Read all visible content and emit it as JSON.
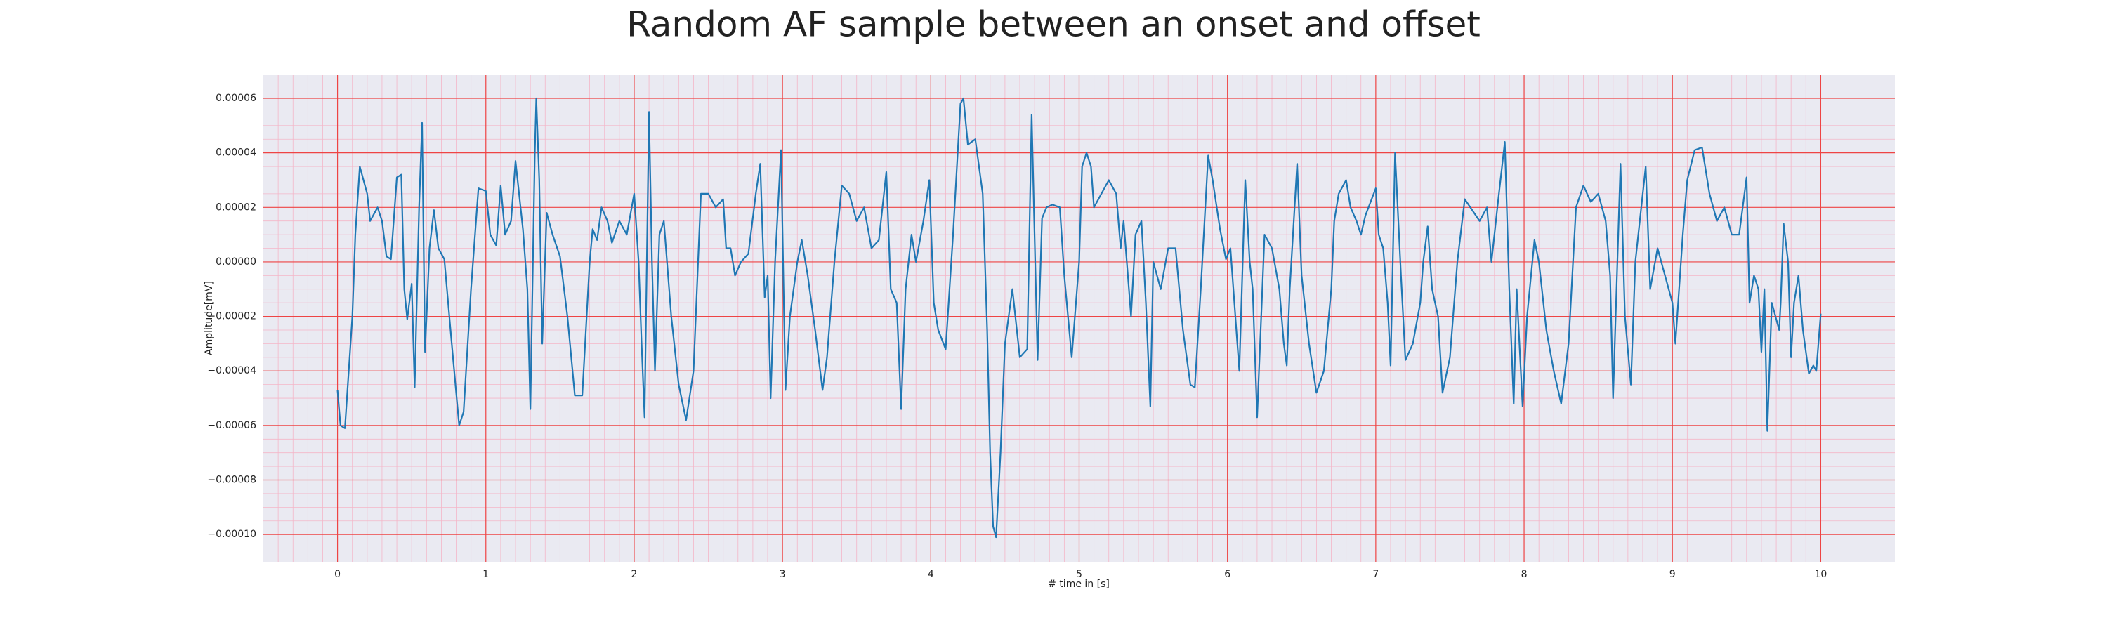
{
  "chart_data": {
    "type": "line",
    "title": "Random AF sample between an onset and offset",
    "xlabel": "# time in [s]",
    "ylabel": "Amplitude[mV]",
    "color": "#1f77b4",
    "grid": true,
    "minor_grid": true,
    "xlim": [
      -0.5,
      10.5
    ],
    "ylim": [
      -0.00011,
      6.85e-05
    ],
    "xticks": [
      0,
      1,
      2,
      3,
      4,
      5,
      6,
      7,
      8,
      9,
      10
    ],
    "yticks": [
      {
        "value": -0.0001,
        "label": "−0.00010"
      },
      {
        "value": -8e-05,
        "label": "−0.00008"
      },
      {
        "value": -6e-05,
        "label": "−0.00006"
      },
      {
        "value": -4e-05,
        "label": "−0.00004"
      },
      {
        "value": -2e-05,
        "label": "−0.00002"
      },
      {
        "value": 0,
        "label": "0.00000"
      },
      {
        "value": 2e-05,
        "label": "0.00002"
      },
      {
        "value": 4e-05,
        "label": "0.00004"
      },
      {
        "value": 6e-05,
        "label": "0.00006"
      }
    ],
    "x": [
      0,
      0.02,
      0.05,
      0.1,
      0.12,
      0.15,
      0.2,
      0.22,
      0.27,
      0.3,
      0.33,
      0.36,
      0.4,
      0.43,
      0.45,
      0.47,
      0.5,
      0.52,
      0.55,
      0.57,
      0.59,
      0.62,
      0.65,
      0.68,
      0.72,
      0.77,
      0.82,
      0.85,
      0.9,
      0.95,
      1.0,
      1.03,
      1.07,
      1.1,
      1.13,
      1.17,
      1.2,
      1.25,
      1.28,
      1.3,
      1.33,
      1.34,
      1.36,
      1.38,
      1.41,
      1.45,
      1.5,
      1.55,
      1.6,
      1.65,
      1.7,
      1.72,
      1.75,
      1.78,
      1.82,
      1.85,
      1.9,
      1.95,
      2.0,
      2.03,
      2.05,
      2.07,
      2.1,
      2.12,
      2.14,
      2.17,
      2.2,
      2.25,
      2.3,
      2.35,
      2.4,
      2.45,
      2.5,
      2.55,
      2.6,
      2.62,
      2.65,
      2.68,
      2.72,
      2.77,
      2.82,
      2.85,
      2.88,
      2.9,
      2.92,
      2.95,
      2.99,
      3.02,
      3.05,
      3.1,
      3.13,
      3.17,
      3.22,
      3.27,
      3.3,
      3.35,
      3.4,
      3.45,
      3.5,
      3.55,
      3.6,
      3.65,
      3.7,
      3.73,
      3.77,
      3.8,
      3.83,
      3.87,
      3.9,
      3.95,
      3.99,
      4.02,
      4.05,
      4.1,
      4.15,
      4.2,
      4.22,
      4.25,
      4.3,
      4.35,
      4.38,
      4.4,
      4.42,
      4.44,
      4.47,
      4.5,
      4.55,
      4.6,
      4.65,
      4.68,
      4.72,
      4.75,
      4.78,
      4.82,
      4.87,
      4.9,
      4.95,
      5.0,
      5.02,
      5.05,
      5.08,
      5.1,
      5.15,
      5.2,
      5.25,
      5.28,
      5.3,
      5.35,
      5.38,
      5.42,
      5.45,
      5.48,
      5.5,
      5.55,
      5.6,
      5.65,
      5.7,
      5.75,
      5.78,
      5.82,
      5.87,
      5.9,
      5.95,
      5.99,
      6.02,
      6.06,
      6.08,
      6.12,
      6.15,
      6.17,
      6.2,
      6.25,
      6.3,
      6.35,
      6.38,
      6.4,
      6.42,
      6.47,
      6.5,
      6.55,
      6.6,
      6.65,
      6.7,
      6.72,
      6.75,
      6.8,
      6.83,
      6.87,
      6.9,
      6.93,
      7.0,
      7.02,
      7.05,
      7.08,
      7.1,
      7.13,
      7.17,
      7.2,
      7.25,
      7.3,
      7.32,
      7.35,
      7.38,
      7.42,
      7.45,
      7.5,
      7.55,
      7.6,
      7.65,
      7.7,
      7.75,
      7.78,
      7.82,
      7.87,
      7.9,
      7.93,
      7.95,
      7.99,
      8.02,
      8.07,
      8.1,
      8.15,
      8.2,
      8.25,
      8.3,
      8.35,
      8.4,
      8.45,
      8.5,
      8.55,
      8.58,
      8.6,
      8.65,
      8.68,
      8.72,
      8.75,
      8.82,
      8.85,
      8.9,
      8.95,
      9.0,
      9.02,
      9.07,
      9.1,
      9.15,
      9.2,
      9.25,
      9.3,
      9.35,
      9.4,
      9.45,
      9.5,
      9.52,
      9.55,
      9.58,
      9.6,
      9.62,
      9.64,
      9.67,
      9.72,
      9.73,
      9.75,
      9.78,
      9.8,
      9.82,
      9.85,
      9.88,
      9.92,
      9.95,
      9.97,
      10.0
    ],
    "values": [
      -4.7e-05,
      -6e-05,
      -6.1e-05,
      -2e-05,
      1e-05,
      3.5e-05,
      2.5e-05,
      1.5e-05,
      2e-05,
      1.5e-05,
      2e-06,
      1e-06,
      3.1e-05,
      3.2e-05,
      -1e-05,
      -2.1e-05,
      -8e-06,
      -4.6e-05,
      2e-05,
      5.1e-05,
      -3.3e-05,
      5e-06,
      1.9e-05,
      5e-06,
      1e-06,
      -3e-05,
      -6e-05,
      -5.5e-05,
      -1e-05,
      2.7e-05,
      2.6e-05,
      1e-05,
      6e-06,
      2.8e-05,
      1e-05,
      1.5e-05,
      3.7e-05,
      1.2e-05,
      -1e-05,
      -5.4e-05,
      4e-05,
      6e-05,
      3e-05,
      -3e-05,
      1.8e-05,
      1e-05,
      2e-06,
      -2e-05,
      -4.9e-05,
      -4.9e-05,
      0,
      1.2e-05,
      8e-06,
      2e-05,
      1.5e-05,
      7e-06,
      1.5e-05,
      1e-05,
      2.5e-05,
      0,
      -3e-05,
      -5.7e-05,
      5.5e-05,
      0,
      -4e-05,
      1e-05,
      1.5e-05,
      -2e-05,
      -4.5e-05,
      -5.8e-05,
      -4e-05,
      2.5e-05,
      2.5e-05,
      2e-05,
      2.3e-05,
      5e-06,
      5e-06,
      -5e-06,
      0,
      3e-06,
      2.5e-05,
      3.6e-05,
      -1.3e-05,
      -5e-06,
      -5e-05,
      0,
      4.1e-05,
      -4.7e-05,
      -2e-05,
      0,
      8e-06,
      -5e-06,
      -2.5e-05,
      -4.7e-05,
      -3.5e-05,
      0,
      2.8e-05,
      2.5e-05,
      1.5e-05,
      2e-05,
      5e-06,
      8e-06,
      3.3e-05,
      -1e-05,
      -1.5e-05,
      -5.4e-05,
      -1e-05,
      1e-05,
      0,
      1.5e-05,
      3e-05,
      -1.5e-05,
      -2.5e-05,
      -3.2e-05,
      1e-05,
      5.8e-05,
      6e-05,
      4.3e-05,
      4.5e-05,
      2.5e-05,
      -2.5e-05,
      -7e-05,
      -9.7e-05,
      -0.000101,
      -7e-05,
      -3e-05,
      -1e-05,
      -3.5e-05,
      -3.2e-05,
      5.4e-05,
      -3.6e-05,
      1.6e-05,
      2e-05,
      2.1e-05,
      2e-05,
      -5e-06,
      -3.5e-05,
      0,
      3.5e-05,
      4e-05,
      3.5e-05,
      2e-05,
      2.5e-05,
      3e-05,
      2.5e-05,
      5e-06,
      1.5e-05,
      -2e-05,
      1e-05,
      1.5e-05,
      -1.5e-05,
      -5.3e-05,
      0,
      -1e-05,
      5e-06,
      5e-06,
      -2.5e-05,
      -4.5e-05,
      -4.6e-05,
      -1e-05,
      3.9e-05,
      3e-05,
      1.2e-05,
      1e-06,
      5e-06,
      -2.5e-05,
      -4e-05,
      3e-05,
      0,
      -1e-05,
      -5.7e-05,
      1e-05,
      5e-06,
      -1e-05,
      -3e-05,
      -3.8e-05,
      -1e-05,
      3.6e-05,
      -5e-06,
      -3e-05,
      -4.8e-05,
      -4e-05,
      -1e-05,
      1.5e-05,
      2.5e-05,
      3e-05,
      2e-05,
      1.5e-05,
      1e-05,
      1.7e-05,
      2.7e-05,
      1e-05,
      5e-06,
      -1.5e-05,
      -3.8e-05,
      4e-05,
      -5e-06,
      -3.6e-05,
      -3e-05,
      -1.5e-05,
      0,
      1.3e-05,
      -1e-05,
      -2e-05,
      -4.8e-05,
      -3.5e-05,
      0,
      2.3e-05,
      1.9e-05,
      1.5e-05,
      2e-05,
      0,
      2e-05,
      4.4e-05,
      -1e-05,
      -5.2e-05,
      -1e-05,
      -5.3e-05,
      -2e-05,
      8e-06,
      0,
      -2.5e-05,
      -4e-05,
      -5.2e-05,
      -3e-05,
      2e-05,
      2.8e-05,
      2.2e-05,
      2.5e-05,
      1.5e-05,
      -5e-06,
      -5e-05,
      3.6e-05,
      -2e-05,
      -4.5e-05,
      0,
      3.5e-05,
      -1e-05,
      5e-06,
      -5e-06,
      -1.5e-05,
      -3e-05,
      1e-05,
      3e-05,
      4.1e-05,
      4.2e-05,
      2.5e-05,
      1.5e-05,
      2e-05,
      1e-05,
      1e-05,
      3.1e-05,
      -1.5e-05,
      -5e-06,
      -1e-05,
      -3.3e-05,
      -1e-05,
      -6.2e-05,
      -1.5e-05,
      -2.5e-05,
      -1.5e-05,
      1.4e-05,
      0,
      -3.5e-05,
      -1.5e-05,
      -5e-06,
      -2.5e-05,
      -4.1e-05,
      -3.8e-05,
      -4e-05,
      -1.9e-05
    ]
  }
}
